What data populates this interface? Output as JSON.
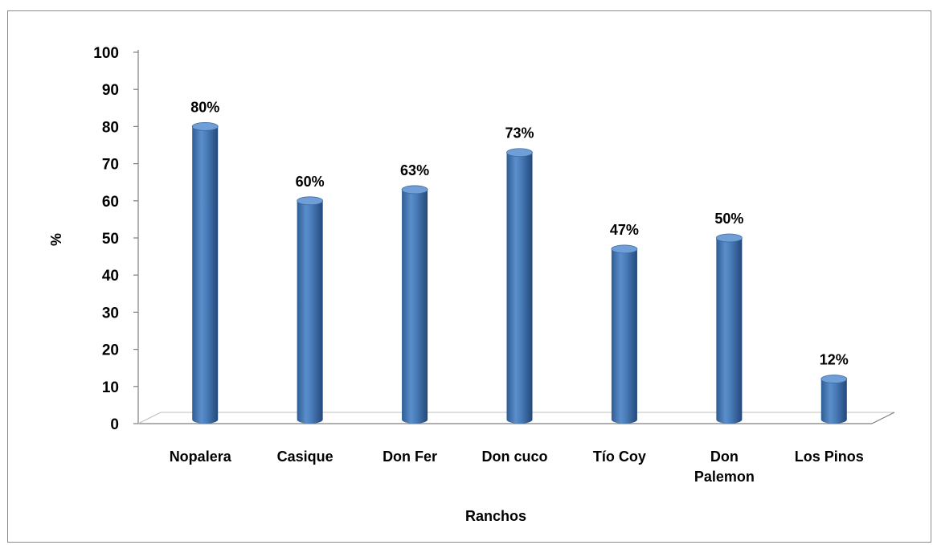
{
  "chart_data": {
    "type": "bar",
    "title": "",
    "xlabel": "Ranchos",
    "ylabel": "%",
    "ylim": [
      0,
      100
    ],
    "yticks": [
      "0",
      "10",
      "20",
      "30",
      "40",
      "50",
      "60",
      "70",
      "80",
      "90",
      "100"
    ],
    "categories": [
      [
        "Nopalera"
      ],
      [
        "Casique"
      ],
      [
        "Don Fer"
      ],
      [
        "Don cuco"
      ],
      [
        "Tío Coy"
      ],
      [
        "Don",
        "Palemon"
      ],
      [
        "Los Pinos"
      ]
    ],
    "values": [
      80,
      60,
      63,
      73,
      47,
      50,
      12
    ],
    "data_labels": [
      "80%",
      "60%",
      "63%",
      "73%",
      "47%",
      "50%",
      "12%"
    ],
    "grid": false,
    "bar_color": "#4a7ebb",
    "bar_style": "3d-cylinder"
  }
}
